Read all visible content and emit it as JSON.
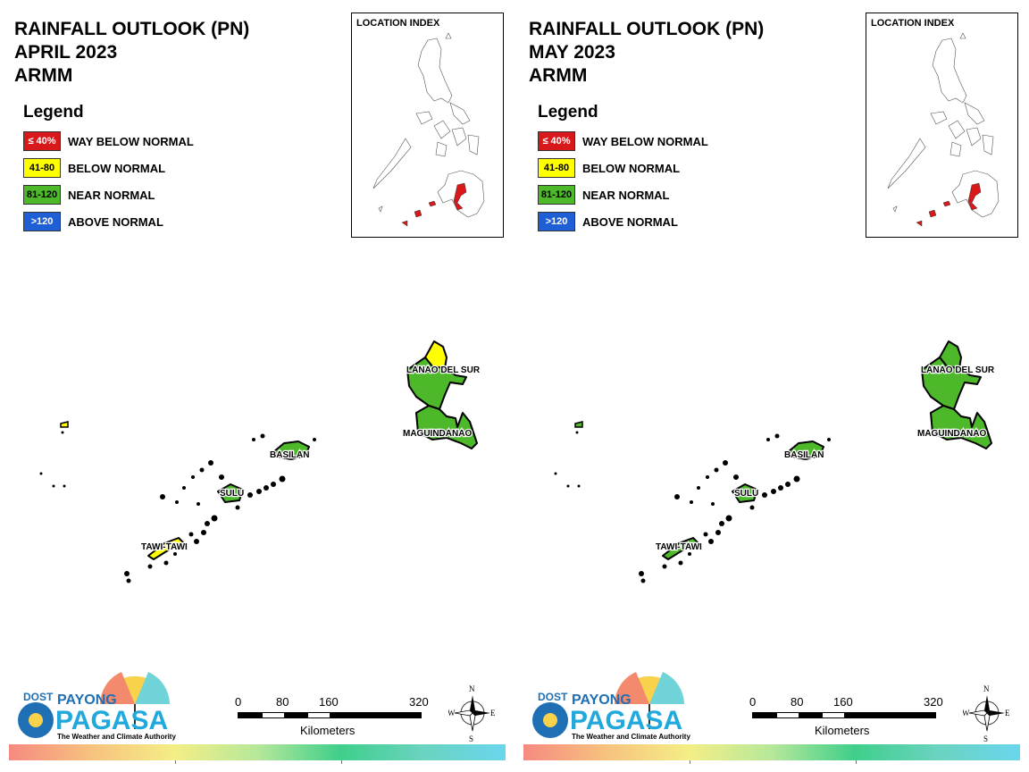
{
  "panels": [
    {
      "title_line1": "RAINFALL OUTLOOK (PN)",
      "title_line2": "APRIL 2023",
      "title_line3": "ARMM",
      "provinces": {
        "lanao_del_sur": {
          "label": "LANAO DEL SUR",
          "category": "near_normal",
          "north_category": "below_normal"
        },
        "maguindanao": {
          "label": "MAGUINDANAO",
          "category": "near_normal"
        },
        "basilan": {
          "label": "BASILAN",
          "category": "near_normal"
        },
        "sulu": {
          "label": "SULU",
          "category": "near_normal"
        },
        "tawi_tawi": {
          "label": "TAWI-TAWI",
          "category": "near_normal",
          "partial_category": "below_normal"
        }
      }
    },
    {
      "title_line1": "RAINFALL OUTLOOK (PN)",
      "title_line2": "MAY 2023",
      "title_line3": "ARMM",
      "provinces": {
        "lanao_del_sur": {
          "label": "LANAO DEL SUR",
          "category": "near_normal",
          "north_category": "near_normal"
        },
        "maguindanao": {
          "label": "MAGUINDANAO",
          "category": "near_normal"
        },
        "basilan": {
          "label": "BASILAN",
          "category": "near_normal"
        },
        "sulu": {
          "label": "SULU",
          "category": "near_normal"
        },
        "tawi_tawi": {
          "label": "TAWI-TAWI",
          "category": "near_normal",
          "partial_category": "near_normal"
        }
      }
    }
  ],
  "legend": {
    "title": "Legend",
    "items": [
      {
        "key": "way_below_normal",
        "range": "≤ 40%",
        "label": "WAY BELOW NORMAL",
        "color": "#d7191c",
        "text_color": "#ffffff"
      },
      {
        "key": "below_normal",
        "range": "41-80",
        "label": "BELOW NORMAL",
        "color": "#ffff00",
        "text_color": "#000000"
      },
      {
        "key": "near_normal",
        "range": "81-120",
        "label": "NEAR NORMAL",
        "color": "#4cb82a",
        "text_color": "#000000"
      },
      {
        "key": "above_normal",
        "range": ">120",
        "label": "ABOVE NORMAL",
        "color": "#1f5fd6",
        "text_color": "#ffffff"
      }
    ]
  },
  "location_index": {
    "title": "LOCATION INDEX",
    "highlight_color": "#d7191c"
  },
  "scale_bar": {
    "ticks": [
      "0",
      "80",
      "160",
      "320"
    ],
    "unit": "Kilometers"
  },
  "compass": {
    "n": "N",
    "s": "S",
    "e": "E",
    "w": "W"
  },
  "logo": {
    "dost": "DOST",
    "payong": "PAYONG",
    "pagasa": "PAGASA",
    "tagline": "The Weather and Climate Authority"
  }
}
